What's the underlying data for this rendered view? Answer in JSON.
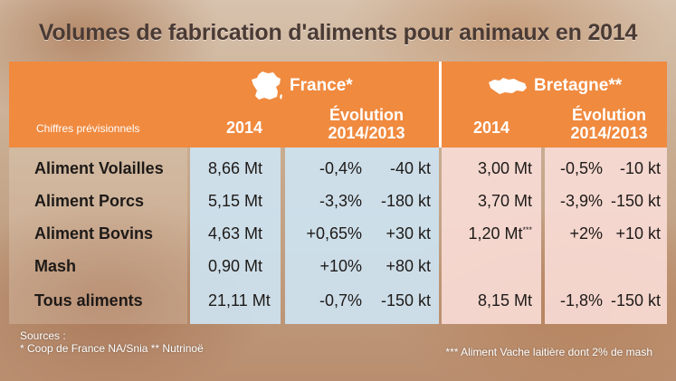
{
  "title": "Volumes de fabrication d'aliments pour animaux en 2014",
  "header": {
    "row_header": "Chiffres prévisionnels",
    "france": {
      "name": "France*",
      "col_2014": "2014",
      "col_evo_line1": "Évolution",
      "col_evo_line2": "2014/2013"
    },
    "bretagne": {
      "name": "Bretagne**",
      "col_2014": "2014",
      "col_evo_line1": "Évolution",
      "col_evo_line2": "2014/2013"
    }
  },
  "rows": [
    {
      "label": "Aliment Volailles",
      "fr_2014": "8,66 Mt",
      "fr_evo_pct": "-0,4%",
      "fr_evo_kt": "-40 kt",
      "br_2014": "3,00 Mt",
      "br_mark": "",
      "br_evo_pct": "-0,5%",
      "br_evo_kt": "-10 kt"
    },
    {
      "label": "Aliment Porcs",
      "fr_2014": "5,15 Mt",
      "fr_evo_pct": "-3,3%",
      "fr_evo_kt": "-180 kt",
      "br_2014": "3,70 Mt",
      "br_mark": "",
      "br_evo_pct": "-3,9%",
      "br_evo_kt": "-150 kt"
    },
    {
      "label": "Aliment Bovins",
      "fr_2014": "4,63 Mt",
      "fr_evo_pct": "+0,65%",
      "fr_evo_kt": "+30 kt",
      "br_2014": "1,20 Mt",
      "br_mark": "***",
      "br_evo_pct": "+2%",
      "br_evo_kt": "+10 kt"
    },
    {
      "label": "Mash",
      "fr_2014": "0,90 Mt",
      "fr_evo_pct": "+10%",
      "fr_evo_kt": "+80 kt",
      "br_2014": "",
      "br_mark": "",
      "br_evo_pct": "",
      "br_evo_kt": ""
    },
    {
      "label": "Tous aliments",
      "fr_2014": "21,11 Mt",
      "fr_evo_pct": "-0,7%",
      "fr_evo_kt": "-150 kt",
      "br_2014": "8,15 Mt",
      "br_mark": "",
      "br_evo_pct": "-1,8%",
      "br_evo_kt": "-150 kt"
    }
  ],
  "footer": {
    "sources_label": "Sources :",
    "sources_text": "* Coop de France NA/Snia ** Nutrinoë",
    "note": "*** Aliment Vache laitière dont 2% de mash"
  },
  "colors": {
    "header_orange": "#f08a3f",
    "france_cells": "#cde3f1",
    "bretagne_cells": "#f7dad4"
  },
  "icons": {
    "france": "france-map-icon",
    "bretagne": "bretagne-map-icon"
  }
}
